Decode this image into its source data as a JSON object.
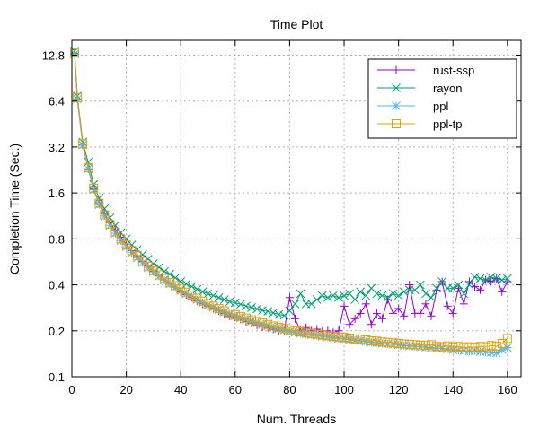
{
  "chart_data": {
    "type": "line",
    "title": "Time Plot",
    "xlabel": "Num. Threads",
    "ylabel": "Completion Time (Sec.)",
    "xlim": [
      0,
      165
    ],
    "ylim": [
      0.1,
      16
    ],
    "y_scale": "log2",
    "grid": true,
    "legend_position": "top-right",
    "x_ticks": [
      0,
      20,
      40,
      60,
      80,
      100,
      120,
      140,
      160
    ],
    "y_ticks": [
      0.1,
      0.2,
      0.4,
      0.8,
      1.6,
      3.2,
      6.4,
      12.8
    ],
    "y_tick_labels": [
      "0.1",
      "0.2",
      "0.4",
      "0.8",
      "1.6",
      "3.2",
      "6.4",
      "12.8"
    ],
    "x": [
      1,
      2,
      4,
      6,
      8,
      10,
      12,
      14,
      16,
      18,
      20,
      22,
      24,
      26,
      28,
      30,
      32,
      34,
      36,
      38,
      40,
      42,
      44,
      46,
      48,
      50,
      52,
      54,
      56,
      58,
      60,
      62,
      64,
      66,
      68,
      70,
      72,
      74,
      76,
      78,
      80,
      82,
      84,
      86,
      88,
      90,
      92,
      94,
      96,
      98,
      100,
      102,
      104,
      106,
      108,
      110,
      112,
      114,
      116,
      118,
      120,
      122,
      124,
      126,
      128,
      130,
      132,
      134,
      136,
      138,
      140,
      142,
      144,
      146,
      148,
      150,
      152,
      154,
      156,
      158,
      160
    ],
    "series": [
      {
        "name": "rust-ssp",
        "color": "#9400d3",
        "marker": "plus",
        "values": [
          13.2,
          6.6,
          3.3,
          2.3,
          1.7,
          1.38,
          1.17,
          1.02,
          0.91,
          0.82,
          0.74,
          0.67,
          0.62,
          0.57,
          0.53,
          0.49,
          0.46,
          0.43,
          0.41,
          0.385,
          0.36,
          0.345,
          0.33,
          0.315,
          0.3,
          0.29,
          0.28,
          0.27,
          0.26,
          0.25,
          0.245,
          0.238,
          0.23,
          0.224,
          0.218,
          0.212,
          0.21,
          0.205,
          0.2,
          0.2,
          0.33,
          0.24,
          0.2,
          0.21,
          0.2,
          0.205,
          0.198,
          0.2,
          0.195,
          0.2,
          0.29,
          0.22,
          0.24,
          0.26,
          0.3,
          0.22,
          0.26,
          0.24,
          0.32,
          0.26,
          0.28,
          0.25,
          0.4,
          0.26,
          0.26,
          0.3,
          0.25,
          0.37,
          0.42,
          0.29,
          0.26,
          0.38,
          0.3,
          0.42,
          0.39,
          0.37,
          0.43,
          0.42,
          0.44,
          0.36,
          0.42
        ]
      },
      {
        "name": "rayon",
        "color": "#009e73",
        "marker": "cross",
        "values": [
          13.6,
          6.9,
          3.45,
          2.55,
          1.82,
          1.48,
          1.26,
          1.1,
          0.98,
          0.88,
          0.8,
          0.73,
          0.68,
          0.63,
          0.59,
          0.55,
          0.52,
          0.49,
          0.47,
          0.445,
          0.42,
          0.405,
          0.39,
          0.375,
          0.36,
          0.35,
          0.34,
          0.33,
          0.32,
          0.31,
          0.305,
          0.298,
          0.29,
          0.284,
          0.278,
          0.272,
          0.268,
          0.262,
          0.256,
          0.252,
          0.27,
          0.3,
          0.35,
          0.3,
          0.3,
          0.32,
          0.34,
          0.33,
          0.34,
          0.33,
          0.34,
          0.35,
          0.32,
          0.36,
          0.34,
          0.38,
          0.35,
          0.34,
          0.33,
          0.35,
          0.34,
          0.36,
          0.37,
          0.37,
          0.4,
          0.35,
          0.33,
          0.38,
          0.42,
          0.38,
          0.38,
          0.4,
          0.35,
          0.4,
          0.45,
          0.44,
          0.43,
          0.45,
          0.44,
          0.43,
          0.44
        ]
      },
      {
        "name": "ppl",
        "color": "#56b4e9",
        "marker": "star",
        "values": [
          13.0,
          6.6,
          3.3,
          2.3,
          1.68,
          1.34,
          1.13,
          0.98,
          0.87,
          0.78,
          0.71,
          0.65,
          0.6,
          0.56,
          0.52,
          0.485,
          0.455,
          0.43,
          0.405,
          0.385,
          0.365,
          0.35,
          0.335,
          0.32,
          0.305,
          0.295,
          0.285,
          0.275,
          0.265,
          0.257,
          0.25,
          0.243,
          0.237,
          0.231,
          0.225,
          0.22,
          0.215,
          0.21,
          0.206,
          0.202,
          0.198,
          0.195,
          0.192,
          0.19,
          0.188,
          0.186,
          0.184,
          0.182,
          0.18,
          0.178,
          0.177,
          0.175,
          0.173,
          0.172,
          0.17,
          0.168,
          0.167,
          0.165,
          0.164,
          0.163,
          0.162,
          0.16,
          0.159,
          0.158,
          0.157,
          0.156,
          0.155,
          0.154,
          0.153,
          0.152,
          0.15,
          0.149,
          0.148,
          0.147,
          0.148,
          0.146,
          0.145,
          0.144,
          0.143,
          0.15,
          0.155
        ]
      },
      {
        "name": "ppl-tp",
        "color": "#e69f00",
        "marker": "square",
        "values": [
          13.3,
          6.75,
          3.35,
          2.35,
          1.72,
          1.37,
          1.15,
          1.0,
          0.89,
          0.8,
          0.73,
          0.67,
          0.62,
          0.57,
          0.53,
          0.495,
          0.465,
          0.44,
          0.415,
          0.395,
          0.375,
          0.358,
          0.342,
          0.327,
          0.313,
          0.301,
          0.29,
          0.28,
          0.27,
          0.262,
          0.255,
          0.248,
          0.242,
          0.236,
          0.23,
          0.225,
          0.22,
          0.215,
          0.211,
          0.207,
          0.203,
          0.2,
          0.197,
          0.195,
          0.192,
          0.19,
          0.188,
          0.186,
          0.184,
          0.182,
          0.181,
          0.179,
          0.177,
          0.176,
          0.174,
          0.172,
          0.171,
          0.169,
          0.168,
          0.167,
          0.165,
          0.164,
          0.163,
          0.162,
          0.161,
          0.16,
          0.162,
          0.158,
          0.157,
          0.159,
          0.156,
          0.158,
          0.155,
          0.157,
          0.156,
          0.158,
          0.157,
          0.16,
          0.158,
          0.165,
          0.178
        ]
      }
    ]
  }
}
